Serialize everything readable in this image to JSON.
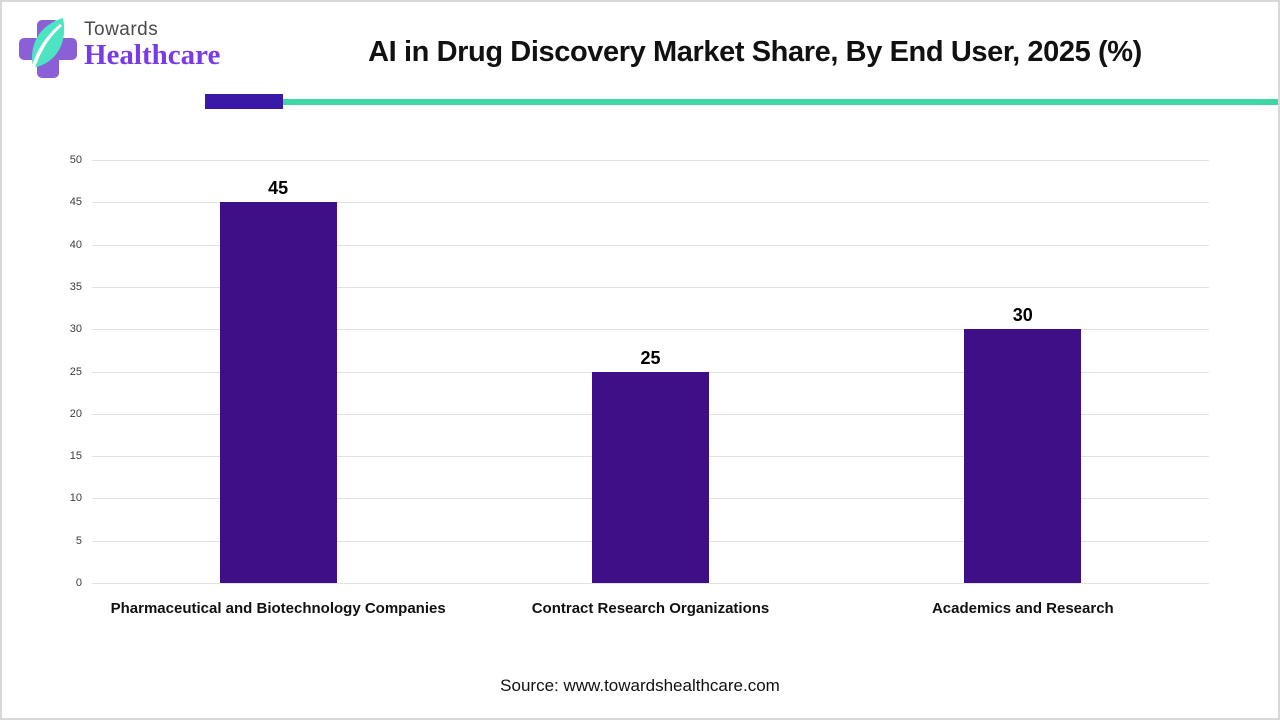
{
  "header": {
    "logo_line1": "Towards",
    "logo_line2": "Healthcare",
    "title": "AI in Drug Discovery Market Share, By End User, 2025 (%)"
  },
  "colors": {
    "bar": "#3F0F87",
    "deco_purple": "#3A18A8",
    "deco_teal": "#3DD6A4",
    "logo_cross": "#8B5FD6",
    "logo_leaf": "#4DE3C3",
    "logo_healthcare_text": "#7B3BE4",
    "gridline": "#E2E2E2"
  },
  "chart_data": {
    "type": "bar",
    "title": "AI in Drug Discovery Market Share, By End User, 2025 (%)",
    "categories": [
      "Pharmaceutical and Biotechnology Companies",
      "Contract Research Organizations",
      "Academics and Research"
    ],
    "values": [
      45,
      25,
      30
    ],
    "data_labels": [
      "45",
      "25",
      "30"
    ],
    "xlabel": "",
    "ylabel": "",
    "ylim": [
      0,
      50
    ],
    "yticks": [
      0,
      5,
      10,
      15,
      20,
      25,
      30,
      35,
      40,
      45,
      50
    ],
    "grid": true,
    "legend": false,
    "bar_color": "#3F0F87"
  },
  "footer": {
    "source": "Source: www.towardshealthcare.com"
  }
}
